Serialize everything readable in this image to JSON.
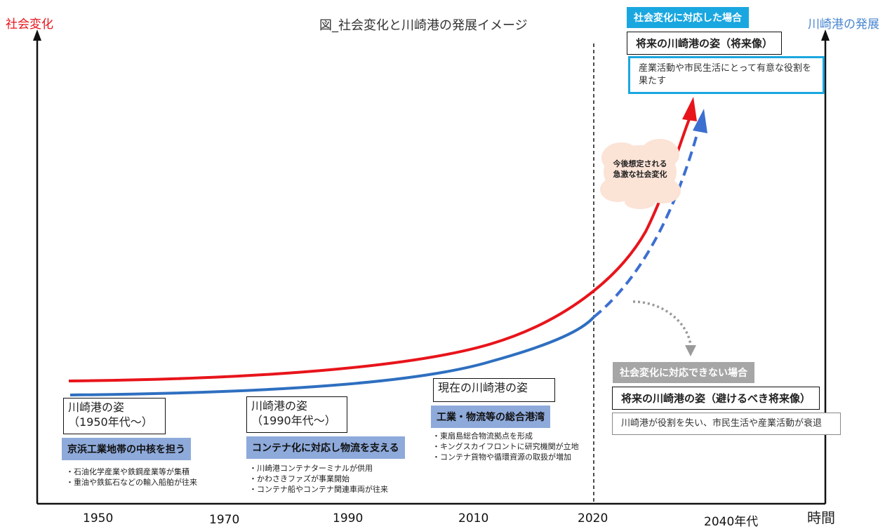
{
  "title": "図_社会変化と川崎港の発展イメージ",
  "y_left_label": "社会変化",
  "y_right_label": "川崎港の発展",
  "x_axis_label": "時間",
  "x_ticks": [
    "1950",
    "1970",
    "1990",
    "2010",
    "2020",
    "2040年代"
  ],
  "colors": {
    "social": "#e8141b",
    "port": "#2e6fc0",
    "success": "#1aa7e0",
    "fail": "#a6a6a6",
    "band": "#8eaadb"
  },
  "eras": [
    {
      "box": "川崎港の姿\n（1950年代～）",
      "band": "京浜工業地帯の中核を担う",
      "notes": [
        "・石油化学産業や鉄鋼産業等が集積",
        "・重油や鉄鉱石などの輸入船舶が往来"
      ]
    },
    {
      "box": "川崎港の姿\n（1990年代～）",
      "band": "コンテナ化に対応し物流を支える",
      "notes": [
        "・川崎港コンテナターミナルが供用",
        "・かわさきファズが事業開始",
        "・コンテナ船やコンテナ関連車両が往来"
      ]
    },
    {
      "box": "現在の川崎港の姿",
      "band": "工業・物流等の総合港湾",
      "notes": [
        "・東扇島総合物流拠点を形成",
        "・キングスカイフロントに研究機関が立地",
        "・コンテナ貨物や循環資源の取扱が増加"
      ]
    }
  ],
  "cloud": "今後想定される\n急激な社会変化",
  "success": {
    "header": "社会変化に対応した場合",
    "title": "将来の川崎港の姿（将来像）",
    "desc": "産業活動や市民生活にとって有意な役割を果たす"
  },
  "fail": {
    "header": "社会変化に対応できない場合",
    "title": "将来の川崎港の姿（避けるべき将来像）",
    "desc": "川崎港が役割を失い、市民生活や産業活動が衰退"
  }
}
